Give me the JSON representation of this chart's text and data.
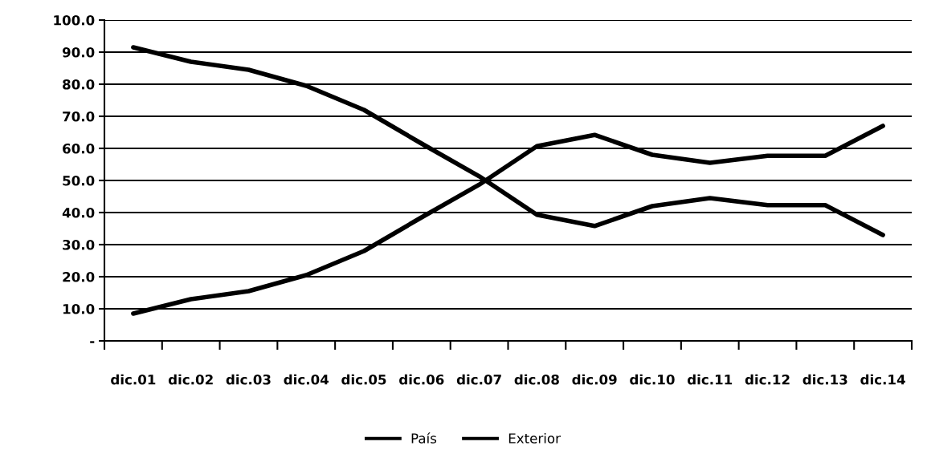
{
  "chart_data": {
    "type": "line",
    "categories": [
      "dic.01",
      "dic.02",
      "dic.03",
      "dic.04",
      "dic.05",
      "dic.06",
      "dic.07",
      "dic.08",
      "dic.09",
      "dic.10",
      "dic.11",
      "dic.12",
      "dic.13",
      "dic.14"
    ],
    "series": [
      {
        "name": "País",
        "color": "#000000",
        "values": [
          8.5,
          13,
          15.5,
          20.5,
          28,
          38.5,
          48.7,
          60.7,
          64.2,
          58,
          55.5,
          57.7,
          57.7,
          67
        ]
      },
      {
        "name": "Exterior",
        "color": "#000000",
        "values": [
          91.5,
          87,
          84.5,
          79.5,
          72,
          61.5,
          51.3,
          39.3,
          35.8,
          42,
          44.5,
          42.3,
          42.3,
          33
        ]
      }
    ],
    "ylim": [
      0,
      100
    ],
    "yticks": [
      {
        "value": 0,
        "label": "-"
      },
      {
        "value": 10,
        "label": "10.0"
      },
      {
        "value": 20,
        "label": "20.0"
      },
      {
        "value": 30,
        "label": "30.0"
      },
      {
        "value": 40,
        "label": "40.0"
      },
      {
        "value": 50,
        "label": "50.0"
      },
      {
        "value": 60,
        "label": "60.0"
      },
      {
        "value": 70,
        "label": "70.0"
      },
      {
        "value": 80,
        "label": "80.0"
      },
      {
        "value": 90,
        "label": "90.0"
      },
      {
        "value": 100,
        "label": "100.0"
      }
    ],
    "grid": "y",
    "legend": "bottom",
    "marker": "none",
    "line_style": "solid"
  }
}
